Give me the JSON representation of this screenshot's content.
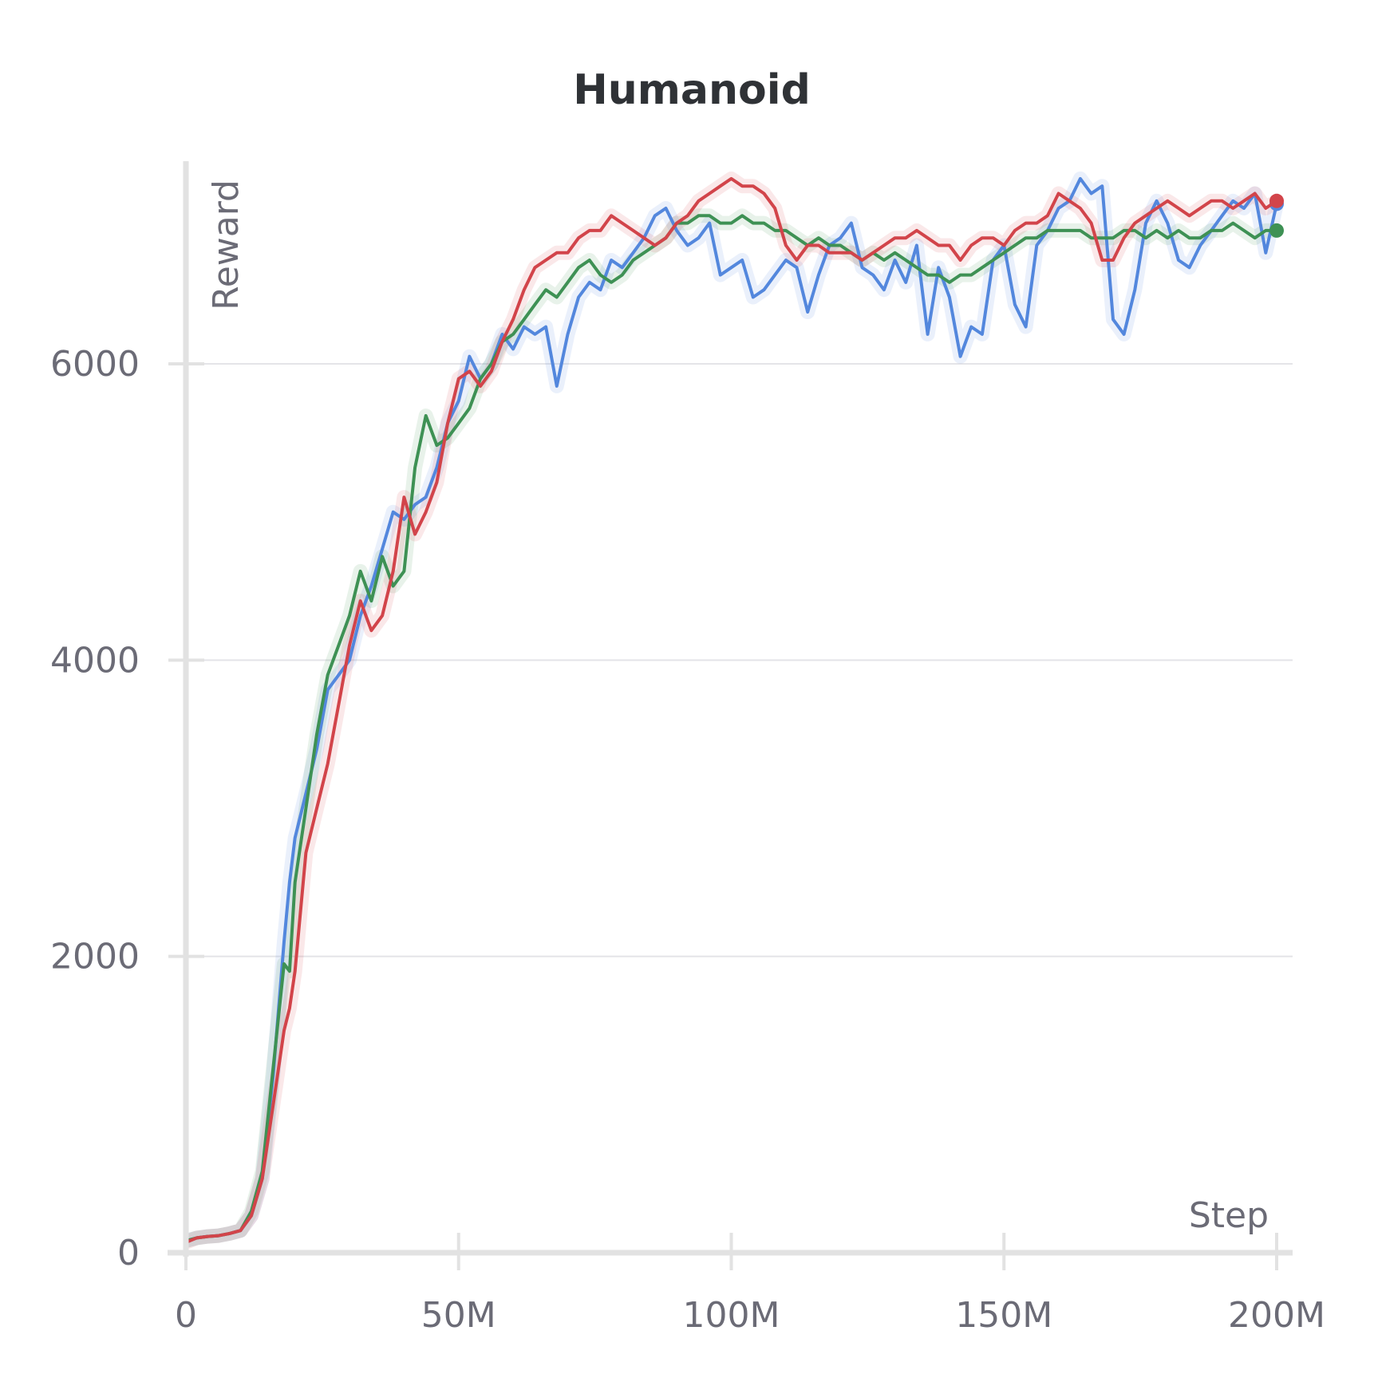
{
  "chart_data": {
    "type": "line",
    "title": "Humanoid",
    "xlabel": "Step",
    "ylabel": "Reward",
    "xlim": [
      0,
      200000000
    ],
    "ylim": [
      0,
      7300
    ],
    "x_ticks": [
      0,
      50000000,
      100000000,
      150000000,
      200000000
    ],
    "x_tick_labels": [
      "0",
      "50M",
      "100M",
      "150M",
      "200M"
    ],
    "y_ticks": [
      0,
      2000,
      4000,
      6000
    ],
    "y_tick_labels": [
      "0",
      "2000",
      "4000",
      "6000"
    ],
    "grid": "horizontal",
    "legend": "none",
    "series": [
      {
        "color": "#5387dd",
        "x": [
          0,
          2,
          4,
          6,
          8,
          10,
          12,
          14,
          16,
          18,
          19,
          20,
          22,
          24,
          26,
          28,
          30,
          32,
          34,
          36,
          38,
          40,
          42,
          44,
          46,
          48,
          50,
          52,
          54,
          56,
          58,
          60,
          62,
          64,
          66,
          68,
          70,
          72,
          74,
          76,
          78,
          80,
          82,
          84,
          86,
          88,
          90,
          92,
          94,
          96,
          98,
          100,
          102,
          104,
          106,
          108,
          110,
          112,
          114,
          116,
          118,
          120,
          122,
          124,
          126,
          128,
          130,
          132,
          134,
          136,
          138,
          140,
          142,
          144,
          146,
          148,
          150,
          152,
          154,
          156,
          158,
          160,
          162,
          164,
          166,
          168,
          170,
          172,
          174,
          176,
          178,
          180,
          182,
          184,
          186,
          188,
          190,
          192,
          194,
          196,
          198,
          200
        ],
        "y": [
          80,
          100,
          110,
          115,
          130,
          150,
          250,
          500,
          1200,
          2100,
          2500,
          2800,
          3100,
          3400,
          3800,
          3900,
          4000,
          4300,
          4500,
          4750,
          5000,
          4950,
          5050,
          5100,
          5300,
          5600,
          5750,
          6050,
          5900,
          6000,
          6200,
          6100,
          6250,
          6200,
          6250,
          5850,
          6200,
          6450,
          6550,
          6500,
          6700,
          6650,
          6750,
          6850,
          7000,
          7050,
          6900,
          6800,
          6850,
          6950,
          6600,
          6650,
          6700,
          6450,
          6500,
          6600,
          6700,
          6650,
          6350,
          6600,
          6800,
          6850,
          6950,
          6650,
          6600,
          6500,
          6700,
          6550,
          6800,
          6200,
          6650,
          6450,
          6050,
          6250,
          6200,
          6700,
          6800,
          6400,
          6250,
          6800,
          6900,
          7050,
          7100,
          7250,
          7150,
          7200,
          6300,
          6200,
          6500,
          6950,
          7100,
          6950,
          6700,
          6650,
          6800,
          6900,
          7000,
          7100,
          7050,
          7150,
          6750,
          7080
        ]
      },
      {
        "color": "#3e9154",
        "x": [
          0,
          2,
          4,
          6,
          8,
          10,
          12,
          14,
          16,
          18,
          19,
          20,
          22,
          24,
          26,
          28,
          30,
          32,
          34,
          36,
          38,
          40,
          42,
          44,
          46,
          48,
          50,
          52,
          54,
          56,
          58,
          60,
          62,
          64,
          66,
          68,
          70,
          72,
          74,
          76,
          78,
          80,
          82,
          84,
          86,
          88,
          90,
          92,
          94,
          96,
          98,
          100,
          102,
          104,
          106,
          108,
          110,
          112,
          114,
          116,
          118,
          120,
          122,
          124,
          126,
          128,
          130,
          132,
          134,
          136,
          138,
          140,
          142,
          144,
          146,
          148,
          150,
          152,
          154,
          156,
          158,
          160,
          162,
          164,
          166,
          168,
          170,
          172,
          174,
          176,
          178,
          180,
          182,
          184,
          186,
          188,
          190,
          192,
          194,
          196,
          198,
          200
        ],
        "y": [
          80,
          100,
          110,
          115,
          130,
          150,
          280,
          550,
          1250,
          1950,
          1900,
          2500,
          3000,
          3500,
          3900,
          4100,
          4300,
          4600,
          4400,
          4700,
          4500,
          4600,
          5300,
          5650,
          5450,
          5500,
          5600,
          5700,
          5900,
          6000,
          6150,
          6200,
          6300,
          6400,
          6500,
          6450,
          6550,
          6650,
          6700,
          6600,
          6550,
          6600,
          6700,
          6750,
          6800,
          6850,
          6950,
          6950,
          7000,
          7000,
          6950,
          6950,
          7000,
          6950,
          6950,
          6900,
          6900,
          6850,
          6800,
          6850,
          6800,
          6800,
          6750,
          6700,
          6750,
          6700,
          6750,
          6700,
          6650,
          6600,
          6600,
          6550,
          6600,
          6600,
          6650,
          6700,
          6750,
          6800,
          6850,
          6850,
          6900,
          6900,
          6900,
          6900,
          6850,
          6850,
          6850,
          6900,
          6900,
          6850,
          6900,
          6850,
          6900,
          6850,
          6850,
          6900,
          6900,
          6950,
          6900,
          6850,
          6900,
          6900
        ]
      },
      {
        "color": "#d2444a",
        "x": [
          0,
          2,
          4,
          6,
          8,
          10,
          12,
          14,
          16,
          18,
          19,
          20,
          22,
          24,
          26,
          28,
          30,
          32,
          34,
          36,
          38,
          40,
          42,
          44,
          46,
          48,
          50,
          52,
          54,
          56,
          58,
          60,
          62,
          64,
          66,
          68,
          70,
          72,
          74,
          76,
          78,
          80,
          82,
          84,
          86,
          88,
          90,
          92,
          94,
          96,
          98,
          100,
          102,
          104,
          106,
          108,
          110,
          112,
          114,
          116,
          118,
          120,
          122,
          124,
          126,
          128,
          130,
          132,
          134,
          136,
          138,
          140,
          142,
          144,
          146,
          148,
          150,
          152,
          154,
          156,
          158,
          160,
          162,
          164,
          166,
          168,
          170,
          172,
          174,
          176,
          178,
          180,
          182,
          184,
          186,
          188,
          190,
          192,
          194,
          196,
          198,
          200
        ],
        "y": [
          70,
          100,
          110,
          115,
          130,
          150,
          250,
          500,
          1000,
          1500,
          1650,
          1900,
          2700,
          3000,
          3300,
          3700,
          4100,
          4400,
          4200,
          4300,
          4600,
          5100,
          4850,
          5000,
          5200,
          5600,
          5900,
          5950,
          5850,
          5950,
          6150,
          6300,
          6500,
          6650,
          6700,
          6750,
          6750,
          6850,
          6900,
          6900,
          7000,
          6950,
          6900,
          6850,
          6800,
          6850,
          6950,
          7000,
          7100,
          7150,
          7200,
          7250,
          7200,
          7200,
          7150,
          7050,
          6800,
          6700,
          6800,
          6800,
          6750,
          6750,
          6750,
          6700,
          6750,
          6800,
          6850,
          6850,
          6900,
          6850,
          6800,
          6800,
          6700,
          6800,
          6850,
          6850,
          6800,
          6900,
          6950,
          6950,
          7000,
          7150,
          7100,
          7050,
          6950,
          6700,
          6700,
          6850,
          6950,
          7000,
          7050,
          7100,
          7050,
          7000,
          7050,
          7100,
          7100,
          7050,
          7100,
          7150,
          7050,
          7100
        ]
      }
    ]
  }
}
